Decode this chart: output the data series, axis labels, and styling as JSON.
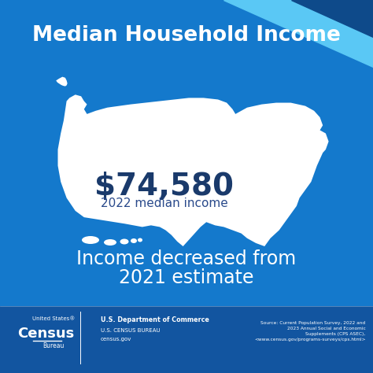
{
  "bg_color": "#1479cc",
  "footer_bg": "#1255a0",
  "title": "Median Household Income",
  "title_color": "#ffffff",
  "title_fontsize": 19,
  "income_value": "$74,580",
  "income_color": "#1a3a6b",
  "income_fontsize": 28,
  "income_sub": "2022 median income",
  "income_sub_color": "#2a4a8b",
  "income_sub_fontsize": 11,
  "tagline1": "Income decreased from",
  "tagline2": "2021 estimate",
  "tagline_color": "#ffffff",
  "tagline_fontsize": 17,
  "map_color": "#ffffff",
  "footer_text1": "U.S. Department of Commerce",
  "footer_text2": "U.S. CENSUS BUREAU",
  "footer_text3": "census.gov",
  "footer_source": "Source: Current Population Survey, 2022 and\n2023 Annual Social and Economic\nSupplements (CPS ASEC),\n<www.census.gov/programs-surveys/cps.html>",
  "census_small": "United States®",
  "census_big": "Census",
  "census_bureau": "Bureau",
  "corner_light": "#5ac8f5",
  "corner_dark": "#0e4a8a"
}
